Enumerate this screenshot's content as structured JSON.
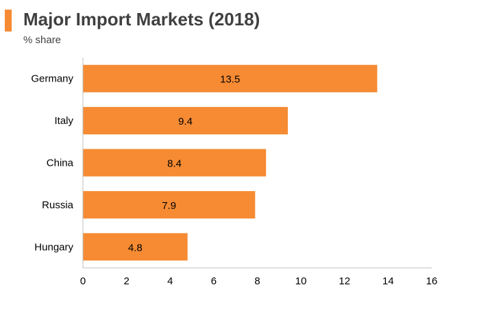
{
  "header": {
    "title": "Major Import Markets (2018)",
    "subtitle": "% share"
  },
  "colors": {
    "accent": "#f68b33",
    "bar": "#f68b33",
    "text": "#404040",
    "axis": "#bfbfbf"
  },
  "chart_data": {
    "type": "bar",
    "orientation": "horizontal",
    "title": "Major Import Markets (2018)",
    "subtitle": "% share",
    "xlabel": "",
    "ylabel": "",
    "categories": [
      "Germany",
      "Italy",
      "China",
      "Russia",
      "Hungary"
    ],
    "values": [
      13.5,
      9.4,
      8.4,
      7.9,
      4.8
    ],
    "data_labels": [
      "13.5",
      "9.4",
      "8.4",
      "7.9",
      "4.8"
    ],
    "xlim": [
      0,
      16
    ],
    "x_ticks": [
      "0",
      "2",
      "4",
      "6",
      "8",
      "10",
      "12",
      "14",
      "16"
    ],
    "grid": false,
    "legend": "none"
  }
}
